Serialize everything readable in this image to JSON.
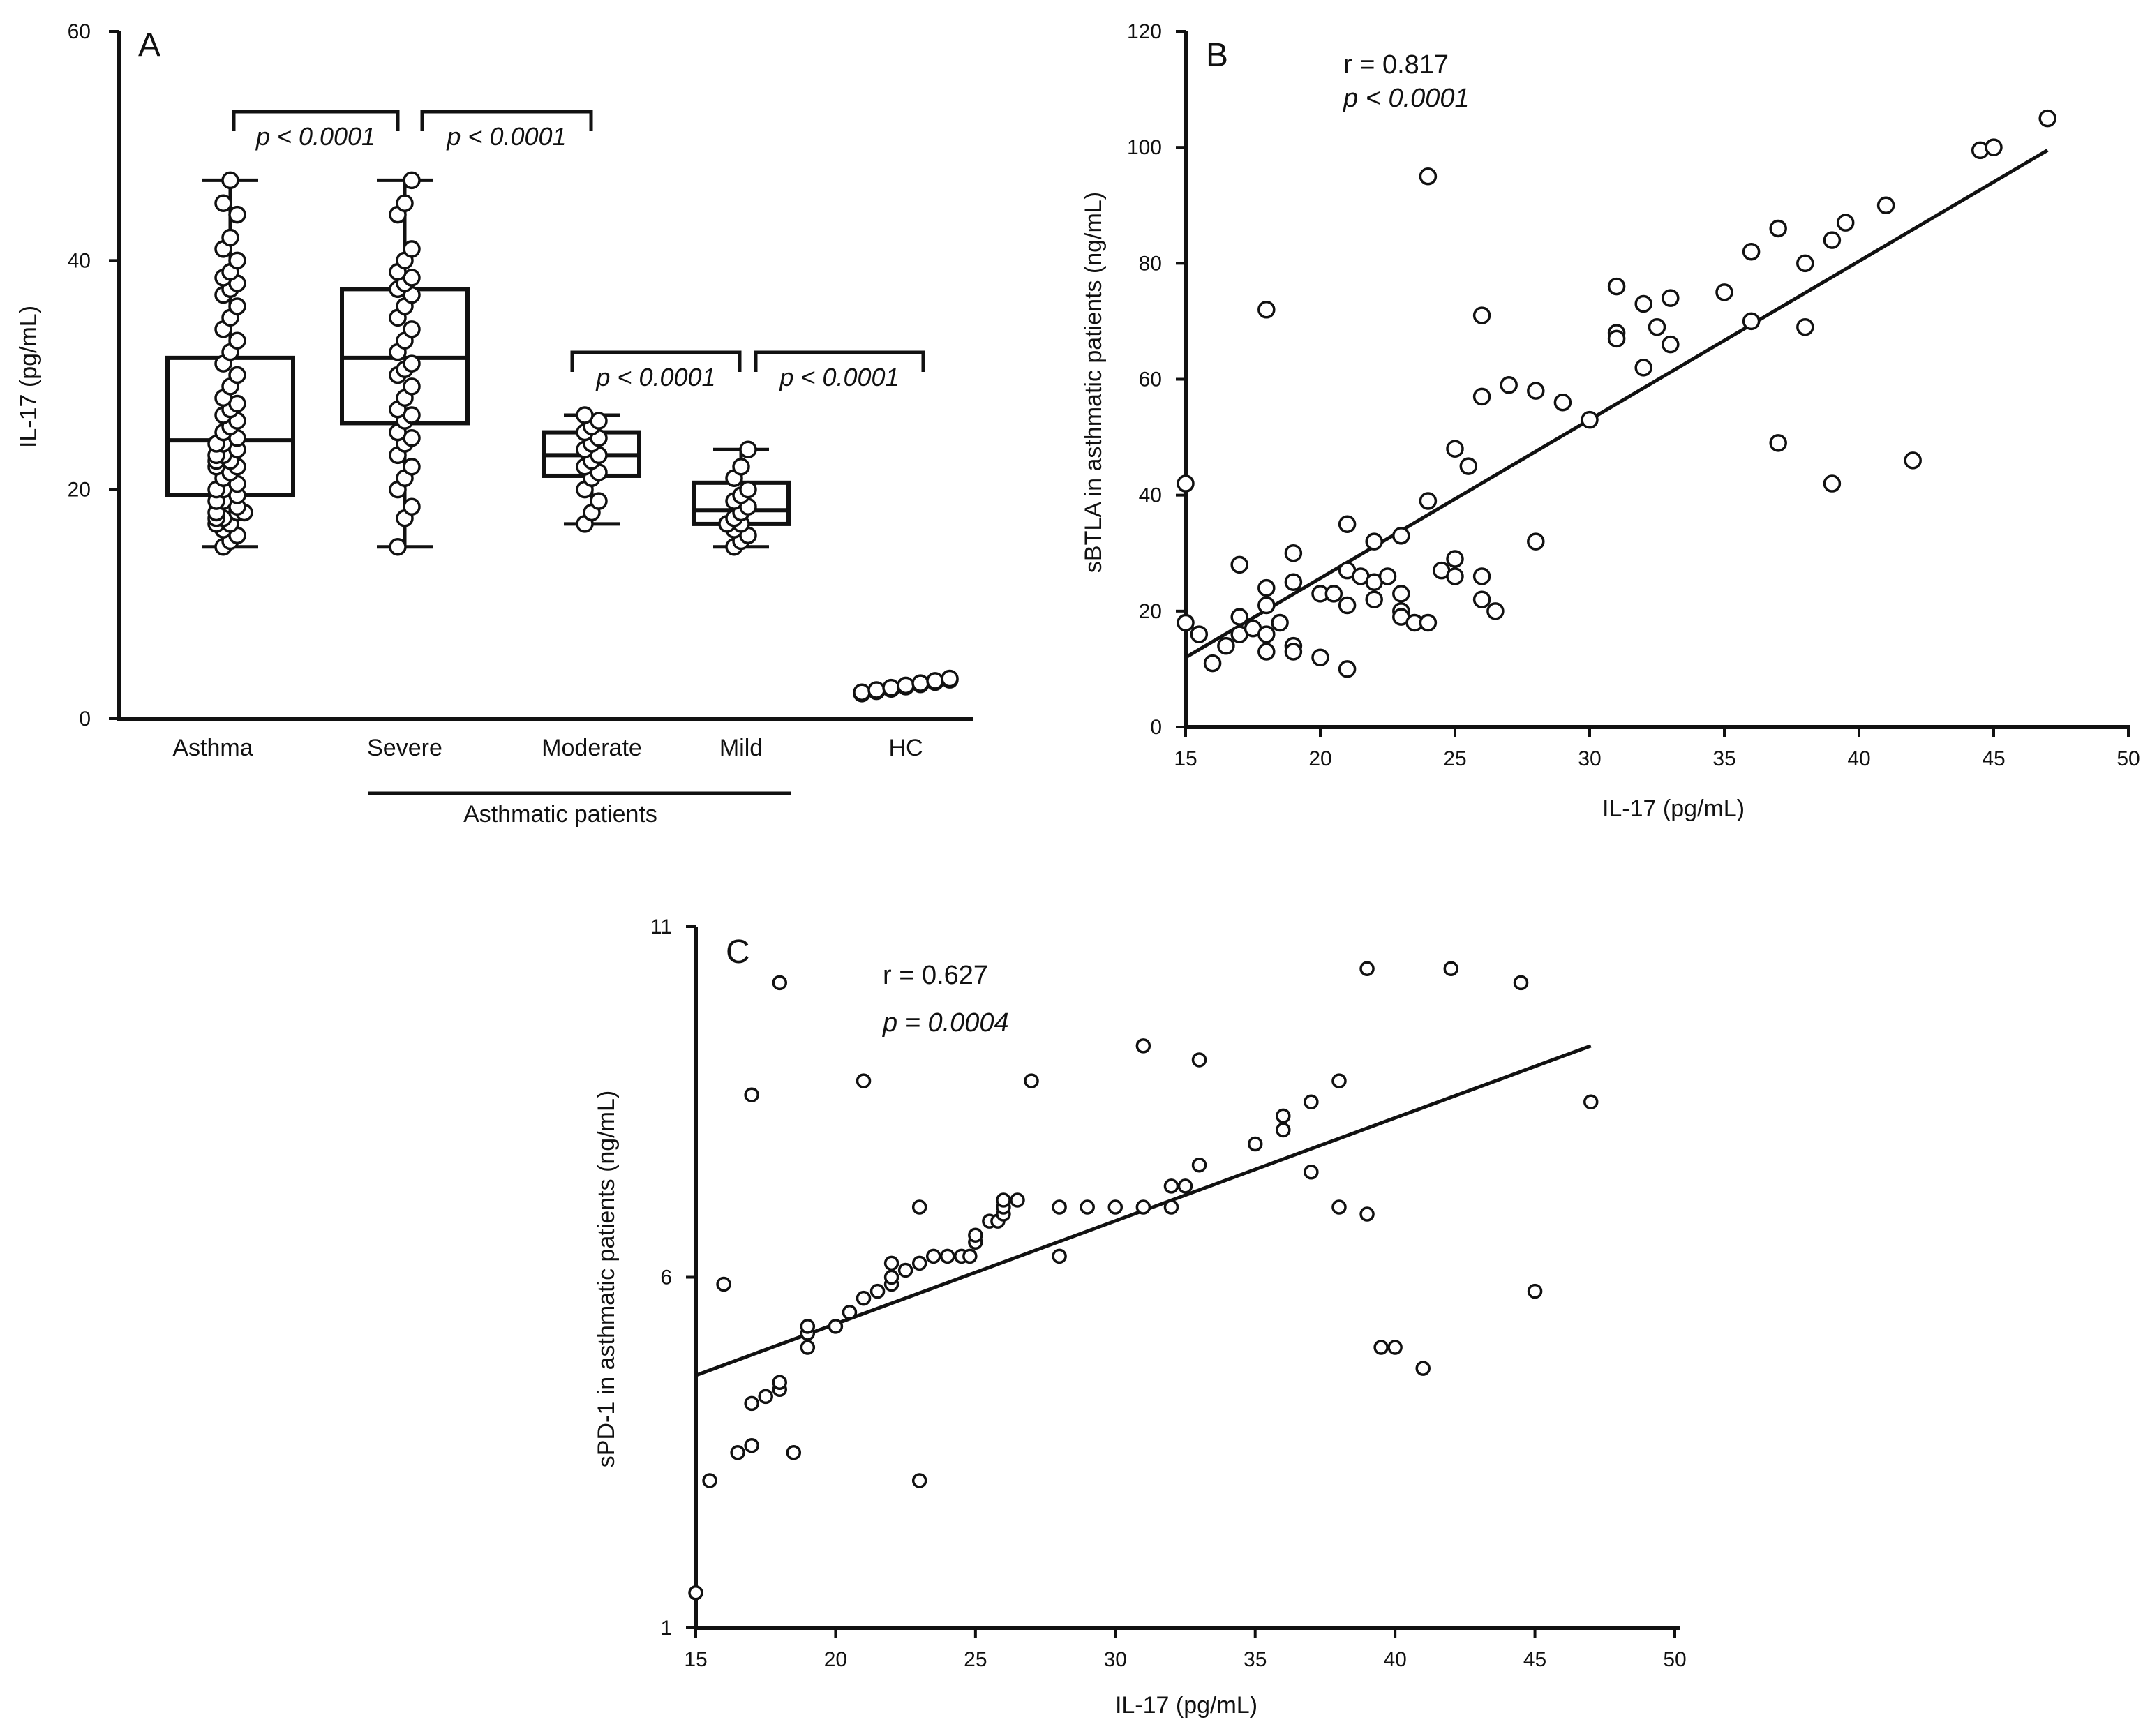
{
  "chart_data": [
    {
      "type": "box",
      "panel": "A",
      "ylabel": "IL-17 (pg/mL)",
      "ylim": [
        0,
        60
      ],
      "yticks": [
        "0",
        "20",
        "40",
        "60"
      ],
      "group_label": "Asthmatic patients",
      "categories": [
        "Asthma",
        "Severe",
        "Moderate",
        "Mild",
        "HC"
      ],
      "boxes": [
        {
          "name": "Asthma",
          "min": 15,
          "q1": 19.5,
          "median": 24.3,
          "q3": 31.5,
          "max": 47,
          "points": [
            15,
            15.5,
            16,
            16.5,
            17,
            17,
            17.5,
            17.5,
            18,
            18,
            18,
            18.5,
            19,
            19,
            19.5,
            20,
            20,
            20.5,
            21,
            21.5,
            22,
            22,
            22.5,
            22.5,
            23,
            23,
            23.5,
            24,
            24,
            24.5,
            25,
            25.5,
            26,
            26.5,
            27,
            27.5,
            28,
            29,
            30,
            31,
            32,
            33,
            34,
            35,
            36,
            37,
            37.5,
            38,
            38.5,
            39,
            40,
            41,
            42,
            44,
            45,
            47
          ]
        },
        {
          "name": "Severe",
          "min": 15,
          "q1": 25.8,
          "median": 31.5,
          "q3": 37.5,
          "max": 47,
          "points": [
            15,
            17.5,
            18.5,
            20,
            21,
            22,
            23,
            24,
            24.5,
            25,
            26,
            26.5,
            27,
            28,
            29,
            30,
            30.5,
            31,
            32,
            33,
            34,
            35,
            36,
            37,
            37.5,
            38,
            38.5,
            39,
            40,
            41,
            44,
            45,
            47
          ]
        },
        {
          "name": "Moderate",
          "min": 17,
          "q1": 21.2,
          "median": 23,
          "q3": 25,
          "max": 26.5,
          "points": [
            17,
            18,
            19,
            20,
            21,
            21.5,
            22,
            22.5,
            23,
            23.5,
            24,
            24.5,
            25,
            25.5,
            26,
            26.5
          ]
        },
        {
          "name": "Mild",
          "min": 15,
          "q1": 17,
          "median": 18.2,
          "q3": 20.6,
          "max": 23.5,
          "points": [
            15,
            15.5,
            16,
            16.5,
            17,
            17,
            17.5,
            18,
            18.5,
            19,
            19.5,
            20,
            21,
            22,
            23.5
          ]
        },
        {
          "name": "HC",
          "min": 2.2,
          "q1": 2.5,
          "median": 3,
          "q3": 3.3,
          "max": 3.5,
          "points": [
            2.2,
            2.4,
            2.6,
            2.8,
            3,
            3.2,
            3.4,
            2.3,
            2.5,
            2.7,
            2.9,
            3.1,
            3.3,
            3.5
          ]
        }
      ],
      "comparisons": [
        {
          "groups": [
            "Asthma",
            "Severe"
          ],
          "label": "p < 0.0001"
        },
        {
          "groups": [
            "Severe",
            "Moderate"
          ],
          "label": "p < 0.0001"
        },
        {
          "groups": [
            "Moderate",
            "Mild"
          ],
          "label": "p < 0.0001"
        },
        {
          "groups": [
            "Mild",
            "HC"
          ],
          "label": "p < 0.0001"
        }
      ]
    },
    {
      "type": "scatter",
      "panel": "B",
      "xlabel": "IL-17 (pg/mL)",
      "ylabel": "sBTLA in asthmatic patients  (ng/mL)",
      "xlim": [
        15,
        50
      ],
      "ylim": [
        0,
        120
      ],
      "xticks": [
        "15",
        "20",
        "25",
        "30",
        "35",
        "40",
        "45",
        "50"
      ],
      "yticks": [
        "0",
        "20",
        "40",
        "60",
        "80",
        "100",
        "120"
      ],
      "r_label": "r = 0.817",
      "p_label": "p < 0.0001",
      "fit": {
        "x": [
          15,
          47
        ],
        "y": [
          12,
          99.5
        ]
      },
      "points": [
        [
          15,
          42
        ],
        [
          15,
          18
        ],
        [
          15.5,
          16
        ],
        [
          16,
          11
        ],
        [
          16.5,
          14
        ],
        [
          17,
          28
        ],
        [
          17,
          16
        ],
        [
          17,
          19
        ],
        [
          17.5,
          17
        ],
        [
          18,
          72
        ],
        [
          18,
          24
        ],
        [
          18,
          21
        ],
        [
          18,
          16
        ],
        [
          18,
          13
        ],
        [
          18.5,
          18
        ],
        [
          19,
          30
        ],
        [
          19,
          25
        ],
        [
          19,
          14
        ],
        [
          19,
          13
        ],
        [
          20,
          23
        ],
        [
          20,
          12
        ],
        [
          20.5,
          23
        ],
        [
          21,
          35
        ],
        [
          21,
          27
        ],
        [
          21,
          10
        ],
        [
          21,
          21
        ],
        [
          21.5,
          26
        ],
        [
          22,
          32
        ],
        [
          22,
          22
        ],
        [
          22,
          25
        ],
        [
          22.5,
          26
        ],
        [
          23,
          33
        ],
        [
          23,
          23
        ],
        [
          23,
          20
        ],
        [
          23,
          19
        ],
        [
          23.5,
          18
        ],
        [
          24,
          95
        ],
        [
          24,
          39
        ],
        [
          24,
          18
        ],
        [
          24.5,
          27
        ],
        [
          25,
          29
        ],
        [
          25,
          26
        ],
        [
          25,
          48
        ],
        [
          25.5,
          45
        ],
        [
          26,
          71
        ],
        [
          26,
          57
        ],
        [
          26,
          26
        ],
        [
          26,
          22
        ],
        [
          26.5,
          20
        ],
        [
          27,
          59
        ],
        [
          28,
          58
        ],
        [
          28,
          32
        ],
        [
          29,
          56
        ],
        [
          30,
          53
        ],
        [
          31,
          76
        ],
        [
          31,
          68
        ],
        [
          31,
          67
        ],
        [
          32,
          73
        ],
        [
          32,
          62
        ],
        [
          32.5,
          69
        ],
        [
          33,
          74
        ],
        [
          33,
          66
        ],
        [
          35,
          75
        ],
        [
          36,
          82
        ],
        [
          36,
          70
        ],
        [
          37,
          86
        ],
        [
          37,
          49
        ],
        [
          38,
          80
        ],
        [
          38,
          69
        ],
        [
          39,
          84
        ],
        [
          39,
          42
        ],
        [
          39.5,
          87
        ],
        [
          41,
          90
        ],
        [
          42,
          46
        ],
        [
          44.5,
          99.5
        ],
        [
          45,
          100
        ],
        [
          47,
          105
        ]
      ]
    },
    {
      "type": "scatter",
      "panel": "C",
      "xlabel": "IL-17 (pg/mL)",
      "ylabel": "sPD-1 in asthmatic patients (ng/mL)",
      "xlim": [
        15,
        50
      ],
      "ylim": [
        1,
        11
      ],
      "xticks": [
        "15",
        "20",
        "25",
        "30",
        "35",
        "40",
        "45",
        "50"
      ],
      "yticks": [
        "1",
        "6",
        "11"
      ],
      "r_label": "r = 0.627",
      "p_label": "p = 0.0004",
      "fit": {
        "x": [
          15,
          47
        ],
        "y": [
          4.6,
          9.3
        ]
      },
      "points": [
        [
          15,
          1.5
        ],
        [
          15.5,
          3.1
        ],
        [
          16,
          5.9
        ],
        [
          16.5,
          3.5
        ],
        [
          17,
          8.6
        ],
        [
          17,
          3.6
        ],
        [
          17,
          4.2
        ],
        [
          17.5,
          4.3
        ],
        [
          18,
          4.4
        ],
        [
          18,
          4.5
        ],
        [
          18,
          10.2
        ],
        [
          18.5,
          3.5
        ],
        [
          19,
          5.0
        ],
        [
          19,
          5.2
        ],
        [
          19,
          5.3
        ],
        [
          20,
          5.3
        ],
        [
          20.5,
          5.5
        ],
        [
          21,
          8.8
        ],
        [
          21,
          5.7
        ],
        [
          21.5,
          5.8
        ],
        [
          22,
          5.9
        ],
        [
          22,
          6.0
        ],
        [
          22,
          6.2
        ],
        [
          22.5,
          6.1
        ],
        [
          23,
          6.2
        ],
        [
          23,
          7.0
        ],
        [
          23,
          3.1
        ],
        [
          23.5,
          6.3
        ],
        [
          24,
          6.3
        ],
        [
          24.5,
          6.3
        ],
        [
          24.8,
          6.3
        ],
        [
          25,
          6.5
        ],
        [
          25,
          6.6
        ],
        [
          25.5,
          6.8
        ],
        [
          25.8,
          6.8
        ],
        [
          26,
          6.9
        ],
        [
          26,
          7.0
        ],
        [
          26,
          7.1
        ],
        [
          26.5,
          7.1
        ],
        [
          27,
          8.8
        ],
        [
          28,
          6.3
        ],
        [
          28,
          7.0
        ],
        [
          29,
          7.0
        ],
        [
          30,
          7.0
        ],
        [
          31,
          9.3
        ],
        [
          31,
          7.0
        ],
        [
          32,
          7.0
        ],
        [
          32,
          7.3
        ],
        [
          32.5,
          7.3
        ],
        [
          33,
          7.6
        ],
        [
          33,
          9.1
        ],
        [
          35,
          7.9
        ],
        [
          36,
          8.1
        ],
        [
          36,
          8.3
        ],
        [
          37,
          7.5
        ],
        [
          37,
          8.5
        ],
        [
          38,
          7.0
        ],
        [
          38,
          8.8
        ],
        [
          39,
          10.4
        ],
        [
          39,
          6.9
        ],
        [
          39.5,
          5.0
        ],
        [
          40,
          5.0
        ],
        [
          41,
          4.7
        ],
        [
          42,
          10.4
        ],
        [
          44.5,
          10.2
        ],
        [
          45,
          5.8
        ],
        [
          47,
          8.5
        ]
      ]
    }
  ]
}
